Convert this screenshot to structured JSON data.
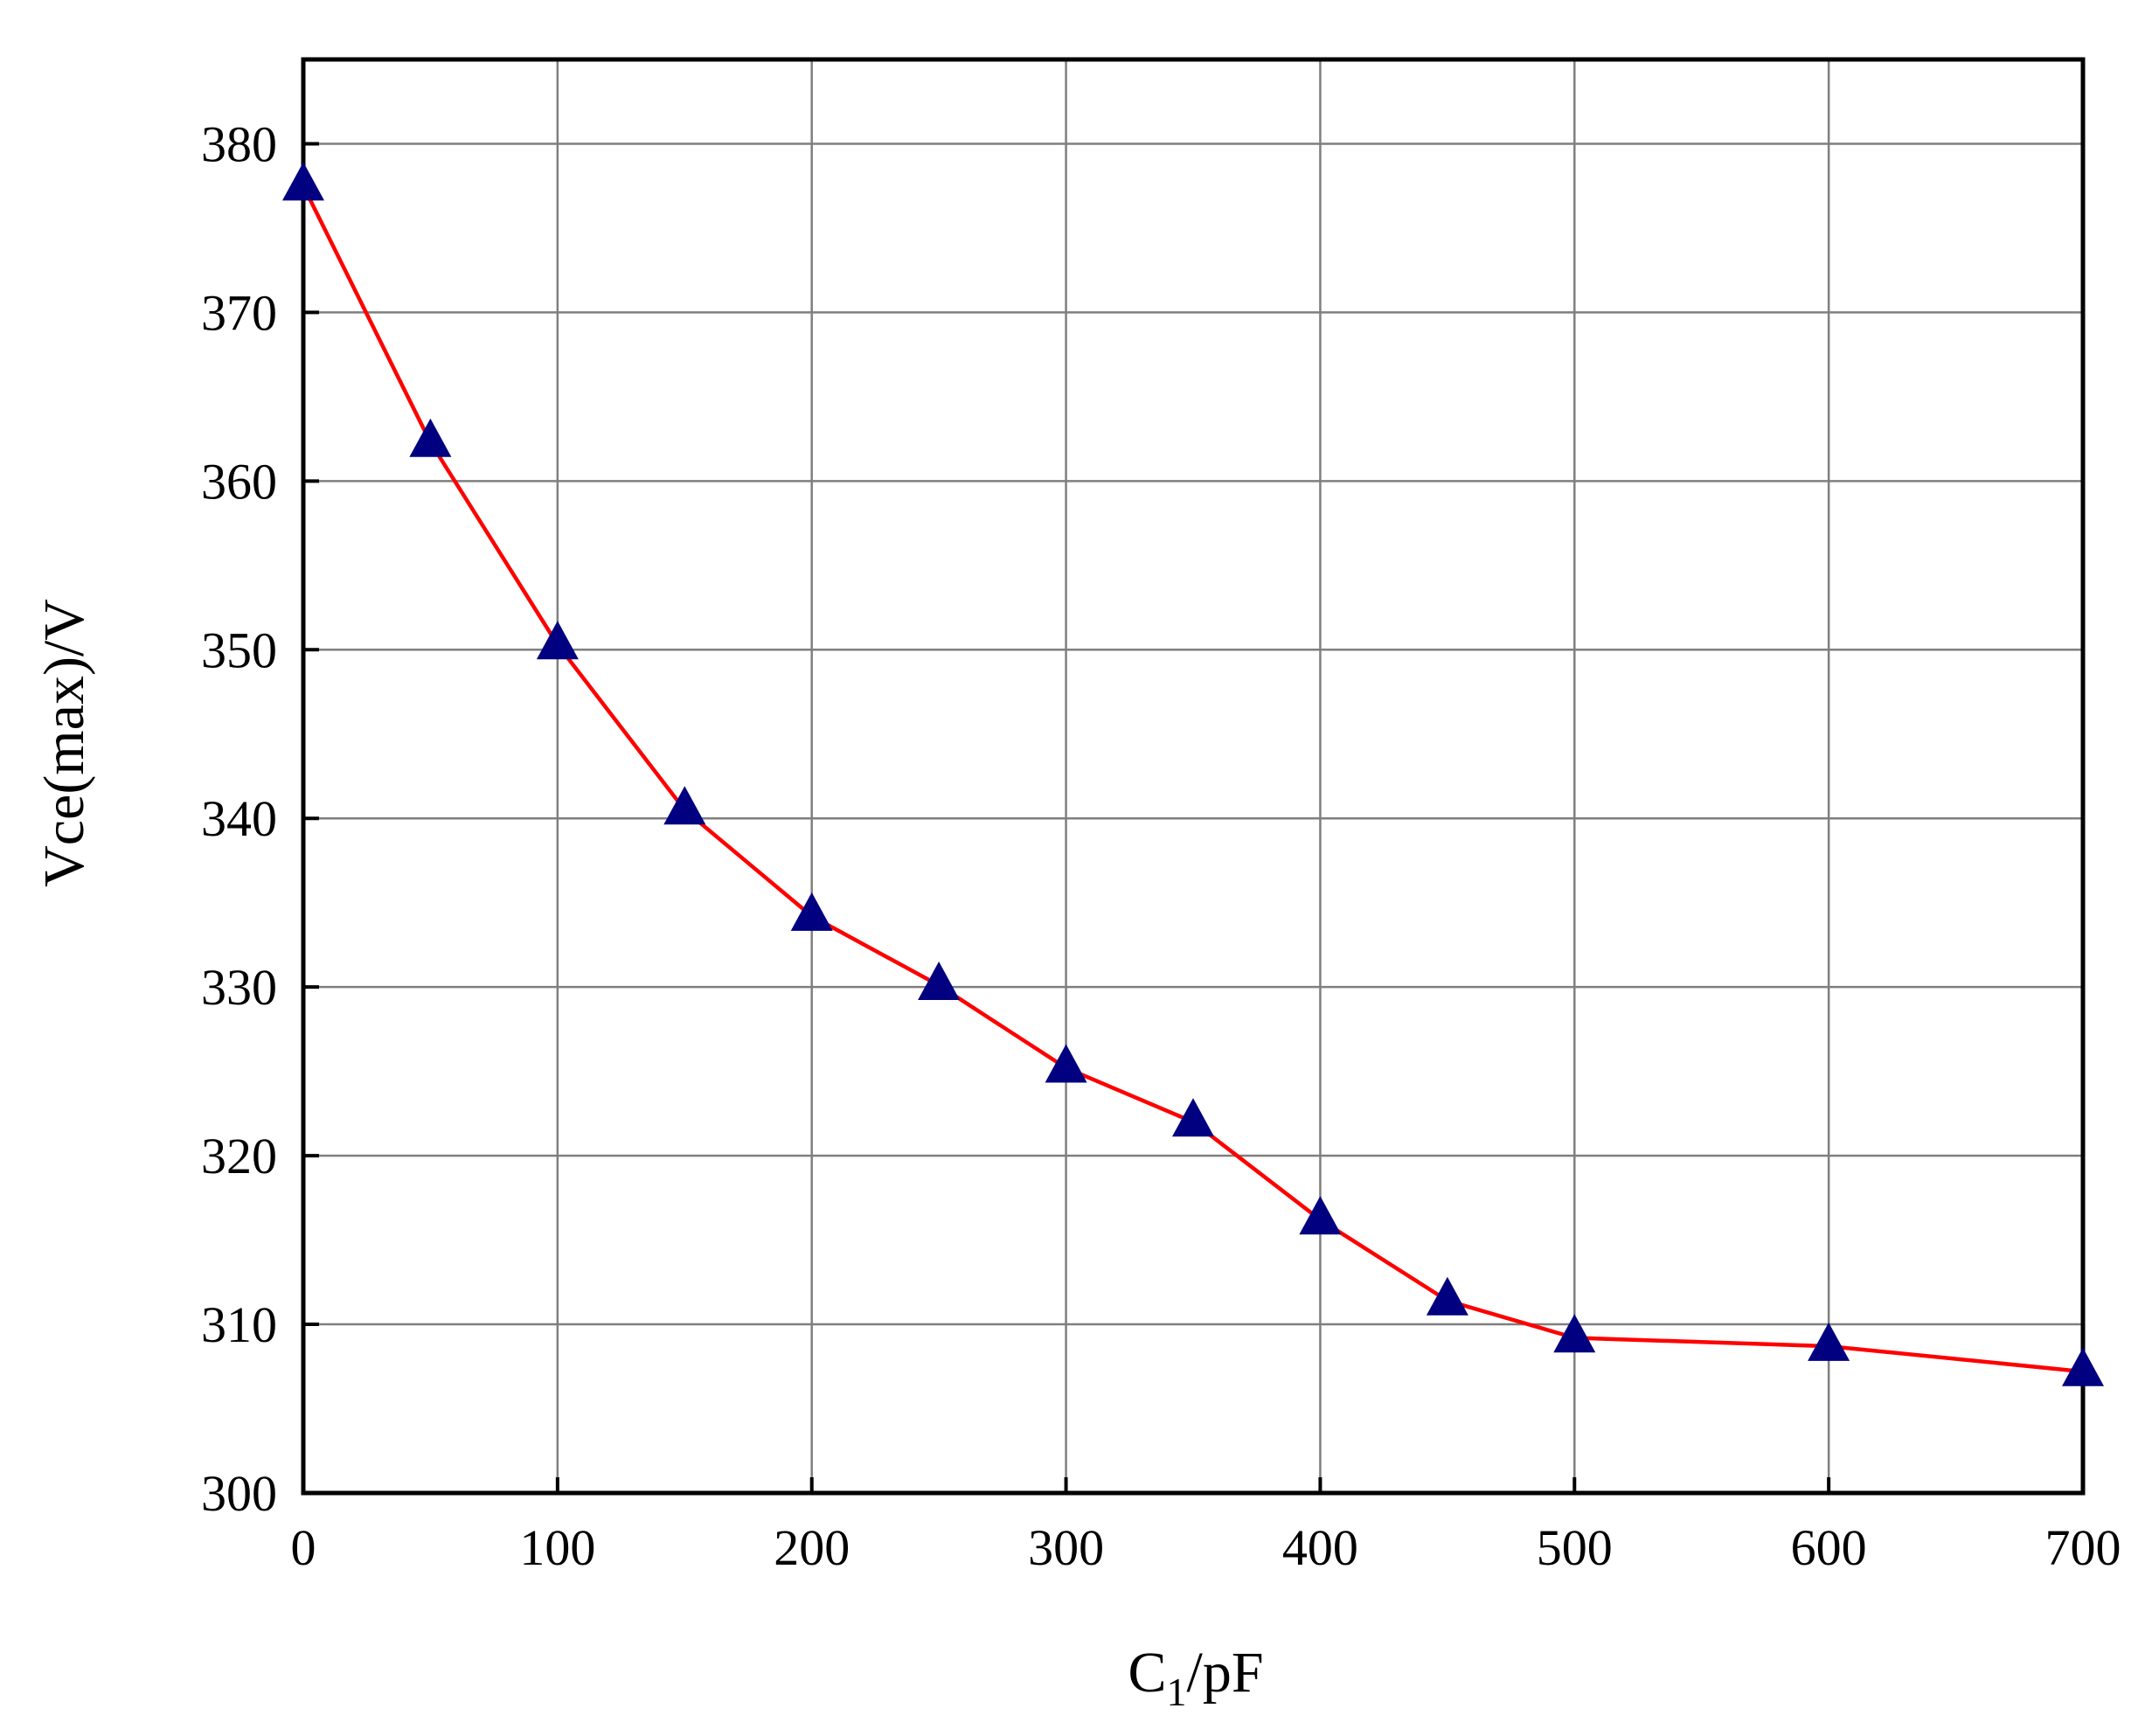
{
  "chart_data": {
    "type": "line",
    "xlabel": {
      "main": "C",
      "sub": "1",
      "rest": "/pF"
    },
    "ylabel": "Vce(max)/V",
    "xlim": [
      0,
      700
    ],
    "ylim": [
      300,
      385
    ],
    "xticks": [
      0,
      100,
      200,
      300,
      400,
      500,
      600,
      700
    ],
    "yticks": [
      300,
      310,
      320,
      330,
      340,
      350,
      360,
      370,
      380
    ],
    "xtick_labels": [
      "0",
      "100",
      "200",
      "300",
      "400",
      "500",
      "600",
      "700"
    ],
    "ytick_labels": [
      "300",
      "310",
      "320",
      "330",
      "340",
      "350",
      "360",
      "370",
      "380"
    ],
    "grid": true,
    "line_color": "#ff0000",
    "marker_color": "#000080",
    "marker": "triangle",
    "series": [
      {
        "x": [
          0,
          50,
          100,
          150,
          200,
          250,
          300,
          350,
          400,
          450,
          500,
          600,
          700
        ],
        "y": [
          377.5,
          362.3,
          350.3,
          340.5,
          334.2,
          330.1,
          325.2,
          322.0,
          316.2,
          311.4,
          309.2,
          308.7,
          307.2
        ]
      }
    ]
  }
}
